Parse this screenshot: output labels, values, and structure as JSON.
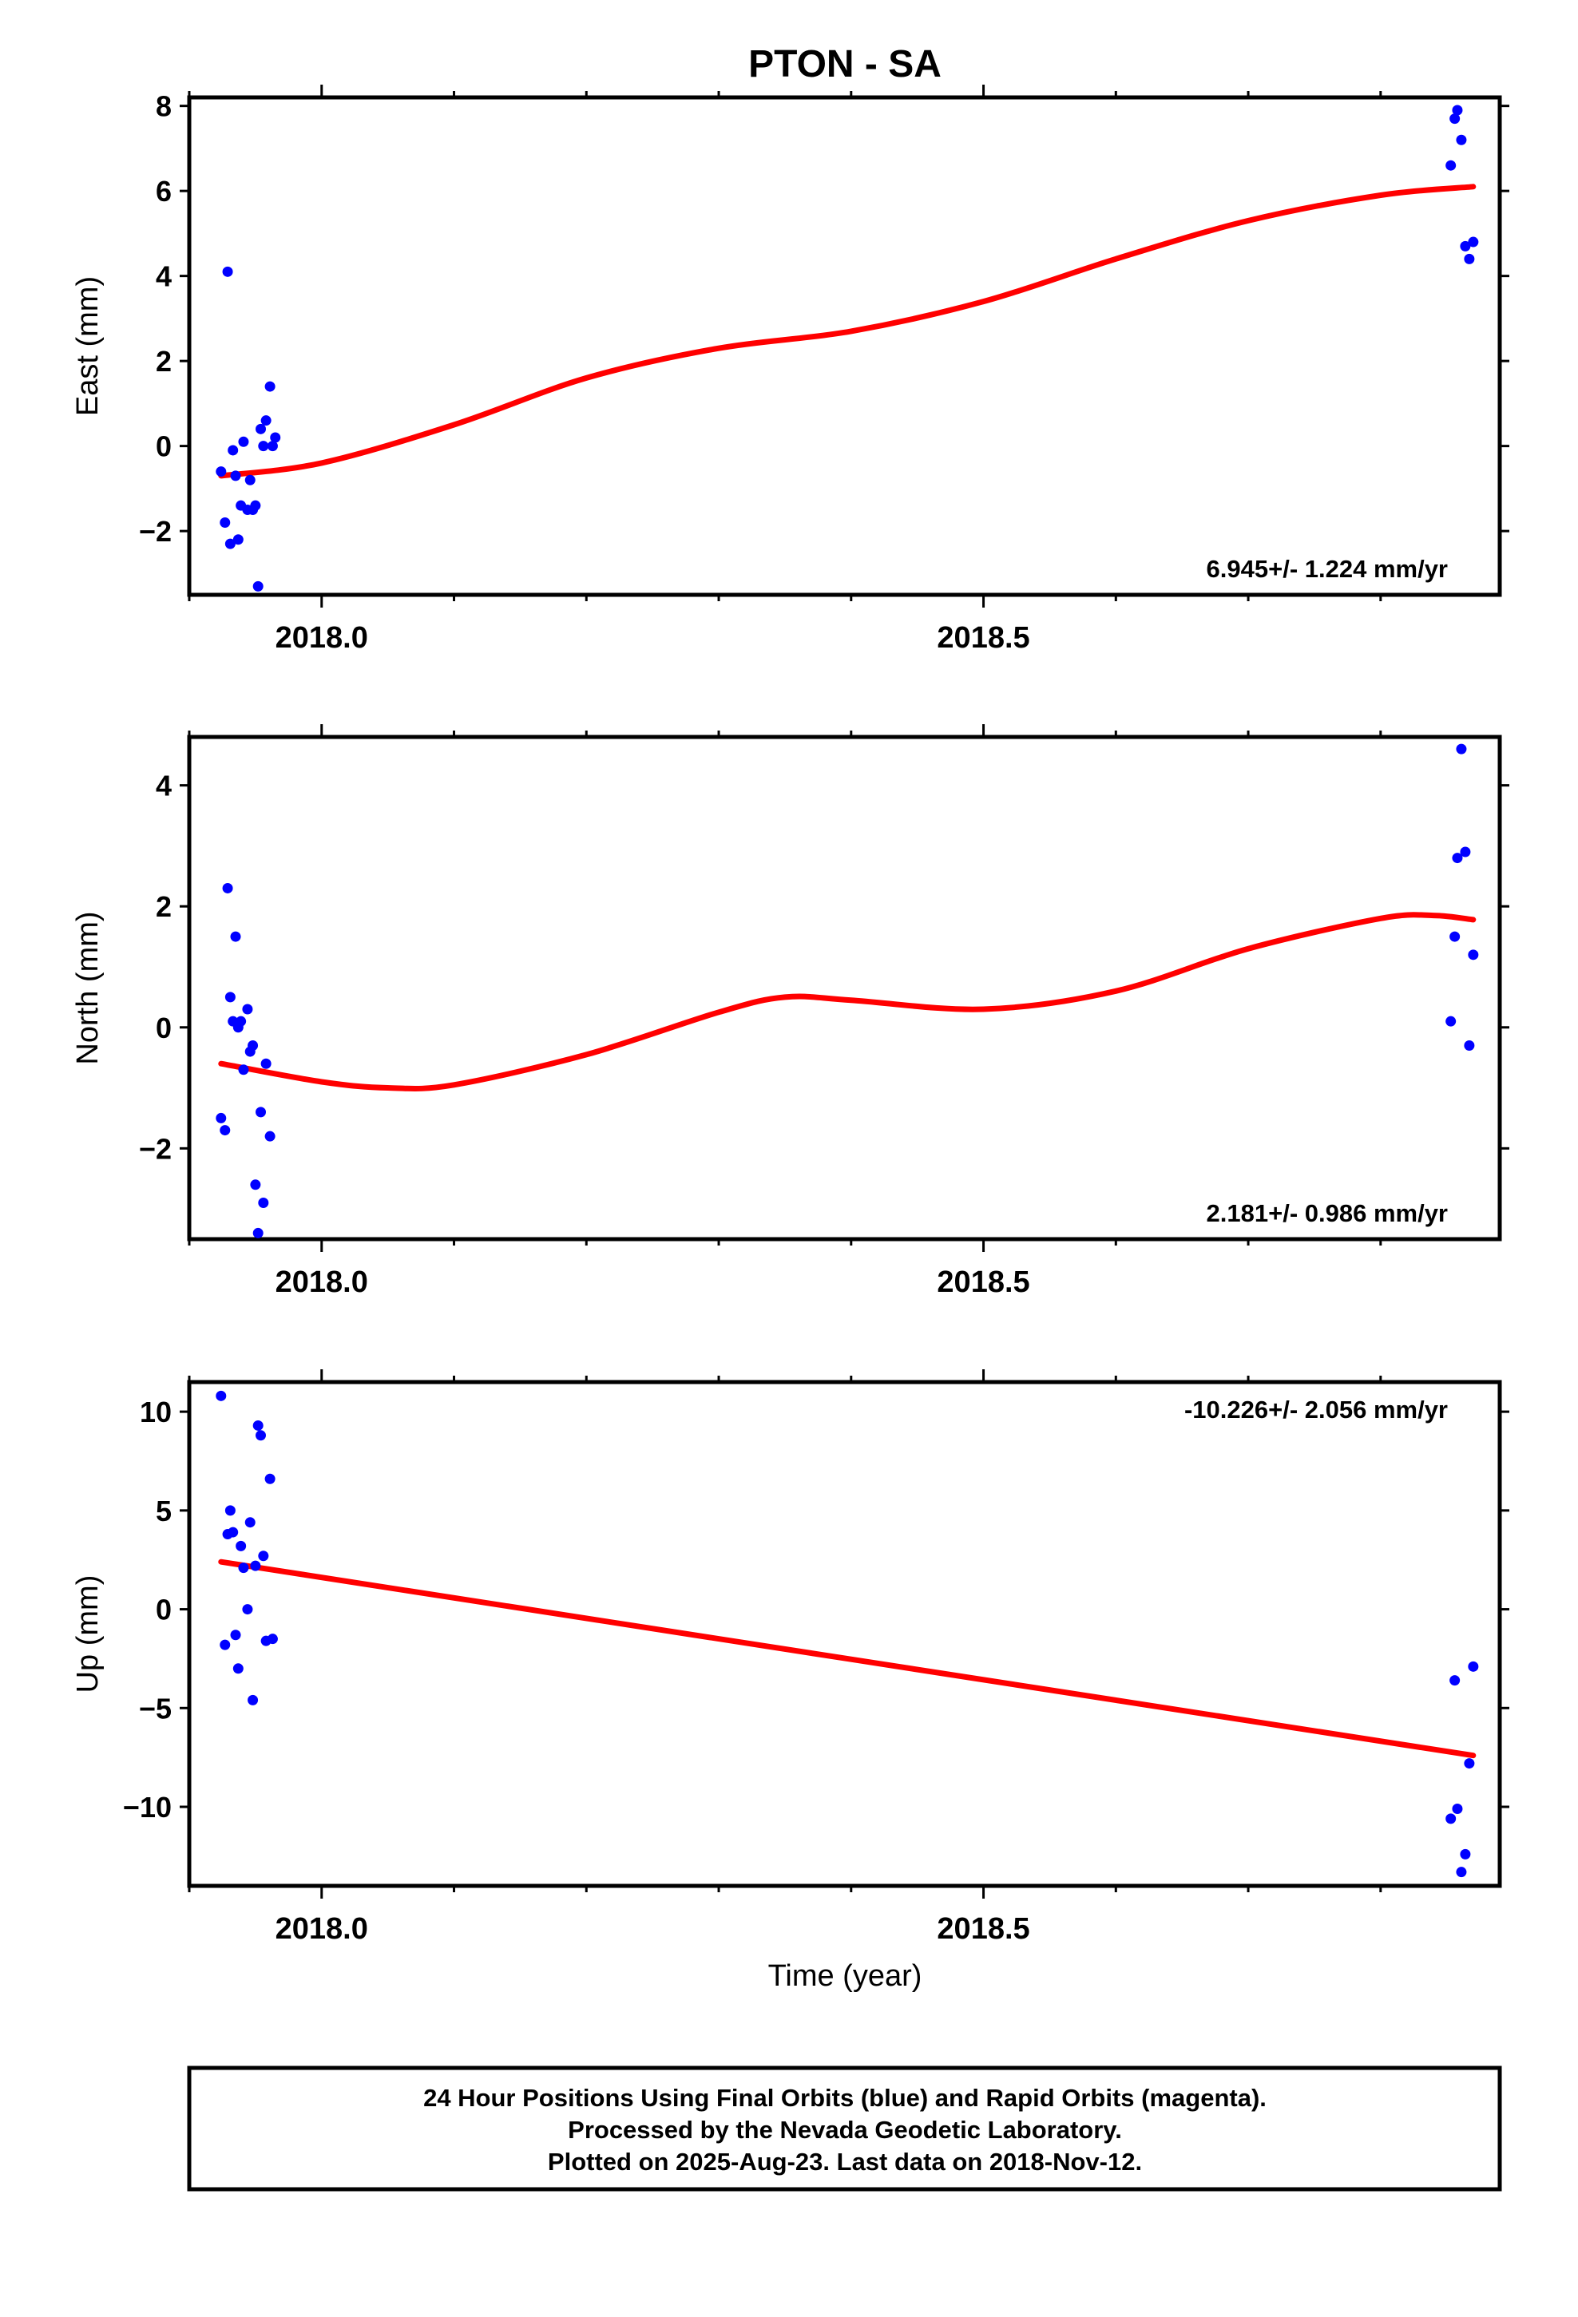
{
  "chart_data": {
    "type": "scatter",
    "title": "PTON - SA",
    "xlabel": "Time (year)",
    "xlim": [
      2017.9,
      2018.89
    ],
    "x_major_ticks": [
      2018.0,
      2018.5
    ],
    "x_minor_ticks": [
      2017.9,
      2018.1,
      2018.2,
      2018.3,
      2018.4,
      2018.6,
      2018.7,
      2018.8
    ],
    "x_tick_labels": [
      "2018.0",
      "2018.5"
    ],
    "grid": false,
    "panels": [
      {
        "name": "east",
        "ylabel": "East (mm)",
        "ylim": [
          -3.5,
          8.2
        ],
        "yticks": [
          8,
          6,
          4,
          2,
          0,
          -2
        ],
        "ytick_labels": [
          "8",
          "6",
          "4",
          "2",
          "0",
          "−2"
        ],
        "rate_text": "6.945+/- 1.224 mm/yr",
        "rate_position": "bottom-right",
        "points_x": [
          2017.924,
          2017.927,
          2017.929,
          2017.931,
          2017.933,
          2017.935,
          2017.937,
          2017.939,
          2017.941,
          2017.944,
          2017.946,
          2017.948,
          2017.95,
          2017.952,
          2017.954,
          2017.956,
          2017.958,
          2017.961,
          2017.963,
          2017.965,
          2018.853,
          2018.856,
          2018.858,
          2018.861,
          2018.864,
          2018.867,
          2018.87
        ],
        "points_y": [
          -0.6,
          -1.8,
          4.1,
          -2.3,
          -0.1,
          -0.7,
          -2.2,
          -1.4,
          0.1,
          -1.5,
          -0.8,
          -1.5,
          -1.4,
          -3.3,
          0.4,
          0.0,
          0.6,
          1.4,
          0.0,
          0.2,
          6.6,
          7.7,
          7.9,
          7.2,
          4.7,
          4.4,
          4.8
        ],
        "fit_x": [
          2017.924,
          2018.0,
          2018.1,
          2018.2,
          2018.3,
          2018.4,
          2018.5,
          2018.6,
          2018.7,
          2018.8,
          2018.87
        ],
        "fit_y": [
          -0.7,
          -0.4,
          0.5,
          1.6,
          2.3,
          2.7,
          3.4,
          4.4,
          5.3,
          5.9,
          6.1
        ]
      },
      {
        "name": "north",
        "ylabel": "North (mm)",
        "ylim": [
          -3.5,
          4.8
        ],
        "yticks": [
          4,
          2,
          0,
          -2
        ],
        "ytick_labels": [
          "4",
          "2",
          "0",
          "−2"
        ],
        "rate_text": "2.181+/- 0.986 mm/yr",
        "rate_position": "bottom-right",
        "points_x": [
          2017.924,
          2017.927,
          2017.929,
          2017.931,
          2017.933,
          2017.935,
          2017.937,
          2017.939,
          2017.941,
          2017.944,
          2017.946,
          2017.948,
          2017.95,
          2017.952,
          2017.954,
          2017.956,
          2017.958,
          2017.961,
          2018.853,
          2018.856,
          2018.858,
          2018.861,
          2018.864,
          2018.867,
          2018.87
        ],
        "points_y": [
          -1.5,
          -1.7,
          2.3,
          0.5,
          0.1,
          1.5,
          0.0,
          0.1,
          -0.7,
          0.3,
          -0.4,
          -0.3,
          -2.6,
          -3.4,
          -1.4,
          -2.9,
          -0.6,
          -1.8,
          0.1,
          1.5,
          2.8,
          4.6,
          2.9,
          -0.3,
          1.2
        ],
        "fit_x": [
          2017.924,
          2018.0,
          2018.05,
          2018.1,
          2018.2,
          2018.3,
          2018.35,
          2018.4,
          2018.5,
          2018.6,
          2018.7,
          2018.8,
          2018.84,
          2018.87
        ],
        "fit_y": [
          -0.6,
          -0.9,
          -1.0,
          -0.95,
          -0.45,
          0.25,
          0.5,
          0.45,
          0.3,
          0.6,
          1.3,
          1.8,
          1.85,
          1.78
        ]
      },
      {
        "name": "up",
        "ylabel": "Up (mm)",
        "ylim": [
          -14,
          11.5
        ],
        "yticks": [
          10,
          5,
          0,
          -5,
          -10
        ],
        "ytick_labels": [
          "10",
          "5",
          "0",
          "−5",
          "−10"
        ],
        "rate_text": "-10.226+/- 2.056 mm/yr",
        "rate_position": "top-right",
        "points_x": [
          2017.924,
          2017.927,
          2017.929,
          2017.931,
          2017.933,
          2017.935,
          2017.937,
          2017.939,
          2017.941,
          2017.944,
          2017.946,
          2017.948,
          2017.95,
          2017.952,
          2017.954,
          2017.956,
          2017.958,
          2017.961,
          2017.963,
          2018.853,
          2018.856,
          2018.858,
          2018.861,
          2018.864,
          2018.867,
          2018.87
        ],
        "points_y": [
          10.8,
          -1.8,
          3.8,
          5.0,
          3.9,
          -1.3,
          -3.0,
          3.2,
          2.1,
          0.0,
          4.4,
          -4.6,
          2.2,
          9.3,
          8.8,
          2.7,
          -1.6,
          6.6,
          -1.5,
          -10.6,
          -3.6,
          -10.1,
          -13.3,
          -12.4,
          -7.8,
          -2.9
        ],
        "fit_x": [
          2017.924,
          2018.87
        ],
        "fit_y": [
          2.4,
          -7.4
        ]
      }
    ]
  },
  "caption": {
    "line1": "24 Hour Positions Using Final Orbits (blue) and Rapid Orbits (magenta).",
    "line2": "Processed by the Nevada Geodetic Laboratory.",
    "line3": "Plotted on 2025-Aug-23. Last data on 2018-Nov-12."
  },
  "colors": {
    "points": "#0000ff",
    "fit": "#ff0000",
    "frame": "#000000"
  }
}
